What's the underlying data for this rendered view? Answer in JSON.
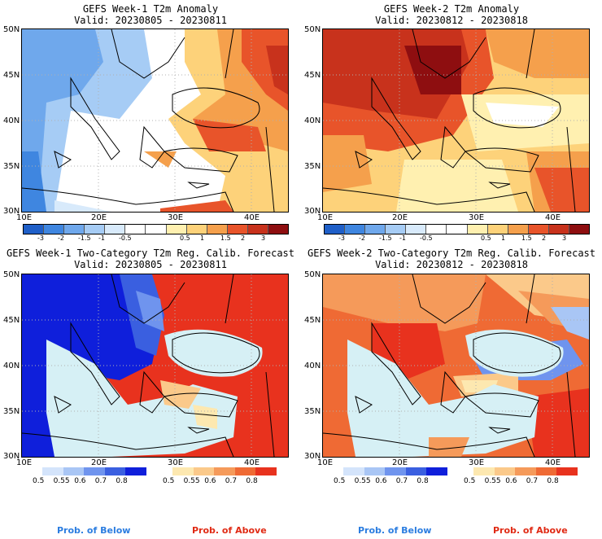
{
  "panels": {
    "p1": {
      "title": "GEFS Week-1 T2m Anomaly",
      "valid": "Valid: 20230805 - 20230811"
    },
    "p2": {
      "title": "GEFS Week-2 T2m Anomaly",
      "valid": "Valid: 20230812 - 20230818"
    },
    "p3": {
      "title": "GEFS Week-1 Two-Category T2m Reg. Calib. Forecast",
      "valid": "Valid: 20230805 - 20230811"
    },
    "p4": {
      "title": "GEFS Week-2 Two-Category T2m Reg. Calib. Forecast",
      "valid": "Valid: 20230812 - 20230818"
    }
  },
  "axes": {
    "lat_labels": [
      "50N",
      "45N",
      "40N",
      "35N",
      "30N"
    ],
    "lon_labels": [
      "10E",
      "20E",
      "30E",
      "40E"
    ]
  },
  "anomaly_colorbar": {
    "colors": [
      "#1f5fc8",
      "#3f86e0",
      "#6fa8ec",
      "#a6ccf5",
      "#d8eafb",
      "#ffffff",
      "#ffffff",
      "#fff0b0",
      "#fdd27a",
      "#f5a04c",
      "#e8542a",
      "#c8321c",
      "#8e0e10"
    ],
    "tick_labels": [
      "-3",
      "-2",
      "-1.5",
      "-1",
      "-0.5",
      "0.5",
      "1",
      "1.5",
      "2",
      "3"
    ]
  },
  "prob_colorbar": {
    "below_colors": [
      "#d4e4fb",
      "#a9c6f5",
      "#6f94ee",
      "#3a5fe0",
      "#0f1fdb"
    ],
    "above_colors": [
      "#fde8b0",
      "#fbc98a",
      "#f59a5a",
      "#ef6a34",
      "#e8321e"
    ],
    "tick_labels": [
      "0.5",
      "0.55",
      "0.6",
      "0.7",
      "0.8"
    ]
  },
  "legend": {
    "below_label": "Prob. of Below",
    "below_color": "#2b7de0",
    "above_label": "Prob. of Above",
    "above_color": "#e02a14"
  },
  "map_colors": {
    "water": "#d6f0f5",
    "land_neutral": "#ffffff",
    "coast": "#000000",
    "grid": "#b0b0b0"
  }
}
